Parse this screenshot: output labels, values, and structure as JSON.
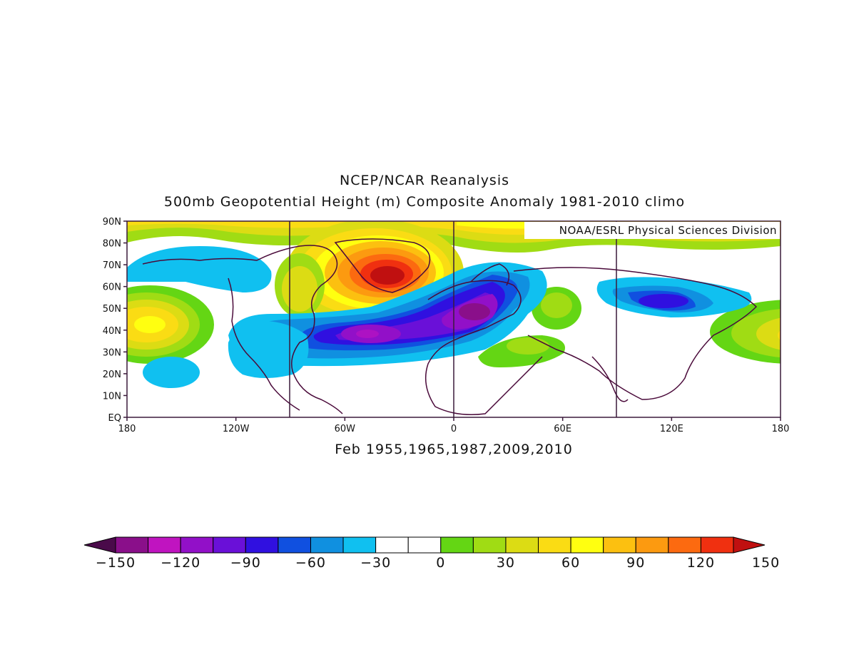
{
  "title_line1": "NCEP/NCAR Reanalysis",
  "title_line2": "500mb Geopotential Height (m) Composite Anomaly 1981-2010 climo",
  "credit": "NOAA/ESRL Physical Sciences Division",
  "subtitle": "Feb 1955,1965,1987,2009,2010",
  "lat_labels": [
    "90N",
    "80N",
    "70N",
    "60N",
    "50N",
    "40N",
    "30N",
    "20N",
    "10N",
    "EQ"
  ],
  "lon_labels": [
    "180",
    "120W",
    "60W",
    "0",
    "60E",
    "120E",
    "180"
  ],
  "colorbar": {
    "labels": [
      "-150",
      "-120",
      "-90",
      "-60",
      "-30",
      "0",
      "30",
      "60",
      "90",
      "120",
      "150"
    ],
    "colors": [
      "#4a0a4a",
      "#8a0f8a",
      "#c014c0",
      "#9210c8",
      "#6a10d8",
      "#3010e0",
      "#1050e0",
      "#1090e0",
      "#10c0f0",
      "#ffffff",
      "#ffffff",
      "#64d614",
      "#a0dc14",
      "#dcdc14",
      "#fadc14",
      "#ffff10",
      "#fcc010",
      "#fc9a10",
      "#fc6a10",
      "#f03010",
      "#c01010"
    ]
  },
  "anomaly_features": [
    {
      "name": "Greenland ridge",
      "peak": "120 to 150",
      "color": "#c01010"
    },
    {
      "name": "North Atlantic trough",
      "peak": "-90 to -120",
      "color": "#8a0f8a"
    },
    {
      "name": "Europe trough",
      "peak": "-90 to -120",
      "color": "#8a0f8a"
    },
    {
      "name": "Central Asia trough",
      "peak": "-60",
      "color": "#3010e0"
    },
    {
      "name": "North Pacific ridge",
      "peak": "90",
      "color": "#ffff10"
    },
    {
      "name": "Southern US trough",
      "peak": "-30",
      "color": "#10c0f0"
    }
  ]
}
